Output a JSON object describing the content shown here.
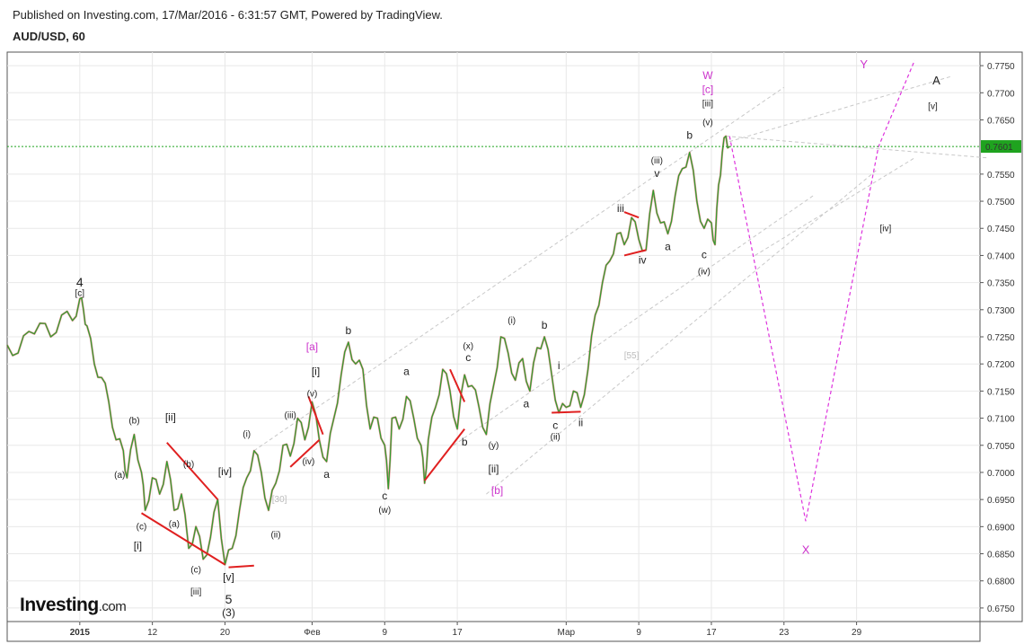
{
  "header": {
    "published": "Published on Investing.com, 17/Mar/2016 - 6:31:57 GMT, Powered by TradingView.",
    "symbol": "AUD/USD, 60"
  },
  "logo": {
    "brand": "Investing",
    "suffix": ".com"
  },
  "chart_data": {
    "type": "line",
    "ylim": [
      0.6725,
      0.7775
    ],
    "y_ticks": [
      0.675,
      0.68,
      0.685,
      0.69,
      0.695,
      0.7,
      0.705,
      0.71,
      0.715,
      0.72,
      0.725,
      0.73,
      0.735,
      0.74,
      0.745,
      0.75,
      0.755,
      0.765,
      0.77,
      0.775
    ],
    "y_tick_labels": [
      "0.6750",
      "0.6800",
      "0.6850",
      "0.6900",
      "0.6950",
      "0.7000",
      "0.7050",
      "0.7100",
      "0.7150",
      "0.7200",
      "0.7250",
      "0.7300",
      "0.7350",
      "0.7400",
      "0.7450",
      "0.7500",
      "0.7550",
      "0.7650",
      "0.7700",
      "0.7750"
    ],
    "x_ticks": [
      {
        "label": "2015",
        "bold": true,
        "t": 0
      },
      {
        "label": "12",
        "t": 10
      },
      {
        "label": "20",
        "t": 20
      },
      {
        "label": "Фев",
        "t": 32
      },
      {
        "label": "9",
        "t": 42
      },
      {
        "label": "17",
        "t": 52
      },
      {
        "label": "Мар",
        "t": 67
      },
      {
        "label": "9",
        "t": 77
      },
      {
        "label": "17",
        "t": 87
      },
      {
        "label": "23",
        "t": 97
      },
      {
        "label": "29",
        "t": 107
      }
    ],
    "x_range": [
      -10,
      124
    ],
    "current_price": {
      "value": 0.7601,
      "label": "0.7601"
    },
    "price_path": [
      [
        -10,
        0.7235
      ],
      [
        -8.5,
        0.722
      ],
      [
        -7,
        0.726
      ],
      [
        -5.5,
        0.7275
      ],
      [
        -4,
        0.725
      ],
      [
        -2.5,
        0.729
      ],
      [
        -1,
        0.728
      ],
      [
        0,
        0.732
      ],
      [
        0.5,
        0.73
      ],
      [
        1,
        0.727
      ],
      [
        2,
        0.72
      ],
      [
        3,
        0.7175
      ],
      [
        4,
        0.713
      ],
      [
        5,
        0.706
      ],
      [
        6,
        0.704
      ],
      [
        6.5,
        0.699
      ],
      [
        7.5,
        0.707
      ],
      [
        8.5,
        0.7
      ],
      [
        9,
        0.693
      ],
      [
        10,
        0.699
      ],
      [
        11,
        0.696
      ],
      [
        12,
        0.702
      ],
      [
        13,
        0.693
      ],
      [
        14,
        0.696
      ],
      [
        15,
        0.686
      ],
      [
        16,
        0.69
      ],
      [
        17,
        0.684
      ],
      [
        18,
        0.688
      ],
      [
        19,
        0.695
      ],
      [
        20,
        0.683
      ],
      [
        21,
        0.686
      ],
      [
        22,
        0.693
      ],
      [
        23,
        0.699
      ],
      [
        24,
        0.704
      ],
      [
        25,
        0.7
      ],
      [
        26,
        0.693
      ],
      [
        27,
        0.698
      ],
      [
        28,
        0.705
      ],
      [
        29,
        0.703
      ],
      [
        30,
        0.71
      ],
      [
        31,
        0.706
      ],
      [
        32,
        0.713
      ],
      [
        33,
        0.706
      ],
      [
        34,
        0.702
      ],
      [
        35,
        0.71
      ],
      [
        36,
        0.718
      ],
      [
        37,
        0.724
      ],
      [
        38,
        0.72
      ],
      [
        39,
        0.719
      ],
      [
        40,
        0.708
      ],
      [
        41,
        0.71
      ],
      [
        42,
        0.705
      ],
      [
        42.5,
        0.697
      ],
      [
        43,
        0.71
      ],
      [
        44,
        0.708
      ],
      [
        45,
        0.714
      ],
      [
        46,
        0.71
      ],
      [
        47,
        0.705
      ],
      [
        47.5,
        0.698
      ],
      [
        48,
        0.706
      ],
      [
        49,
        0.712
      ],
      [
        50,
        0.719
      ],
      [
        51,
        0.715
      ],
      [
        52,
        0.708
      ],
      [
        53,
        0.718
      ],
      [
        54,
        0.716
      ],
      [
        55,
        0.712
      ],
      [
        56,
        0.707
      ],
      [
        57,
        0.716
      ],
      [
        58,
        0.725
      ],
      [
        59,
        0.722
      ],
      [
        60,
        0.717
      ],
      [
        61,
        0.721
      ],
      [
        62,
        0.715
      ],
      [
        63,
        0.723
      ],
      [
        64,
        0.725
      ],
      [
        65,
        0.718
      ],
      [
        66,
        0.711
      ],
      [
        67,
        0.712
      ],
      [
        68,
        0.715
      ],
      [
        69,
        0.712
      ],
      [
        70,
        0.719
      ],
      [
        71,
        0.729
      ],
      [
        72,
        0.735
      ],
      [
        73,
        0.739
      ],
      [
        74,
        0.744
      ],
      [
        75,
        0.742
      ],
      [
        76,
        0.747
      ],
      [
        77,
        0.743
      ],
      [
        78,
        0.741
      ],
      [
        79,
        0.752
      ],
      [
        80,
        0.746
      ],
      [
        81,
        0.744
      ],
      [
        82,
        0.751
      ],
      [
        83,
        0.756
      ],
      [
        84,
        0.759
      ],
      [
        85,
        0.75
      ],
      [
        86,
        0.745
      ],
      [
        87,
        0.746
      ],
      [
        87.5,
        0.742
      ],
      [
        88,
        0.753
      ],
      [
        88.5,
        0.759
      ],
      [
        89,
        0.762
      ],
      [
        89.5,
        0.7601
      ]
    ],
    "price_labels": [
      {
        "text": "0.7750",
        "v": 0.775
      },
      {
        "text": "0.7700",
        "v": 0.77
      },
      {
        "text": "0.7650",
        "v": 0.765
      },
      {
        "text": "0.7550",
        "v": 0.755
      }
    ],
    "wave_labels": [
      {
        "text": "4",
        "t": 0,
        "v": 0.7343,
        "size": 14,
        "color": "#222"
      },
      {
        "text": "[c]",
        "t": 0,
        "v": 0.7325,
        "size": 10,
        "color": "#222"
      },
      {
        "text": "(b)",
        "t": 7.5,
        "v": 0.709,
        "size": 10,
        "color": "#222"
      },
      {
        "text": "(a)",
        "t": 5.5,
        "v": 0.699,
        "size": 10,
        "color": "#222"
      },
      {
        "text": "(c)",
        "t": 8.5,
        "v": 0.6895,
        "size": 10,
        "color": "#222"
      },
      {
        "text": "[i]",
        "t": 8,
        "v": 0.6858,
        "size": 12,
        "color": "#222"
      },
      {
        "text": "[ii]",
        "t": 12.5,
        "v": 0.7095,
        "size": 12,
        "color": "#222"
      },
      {
        "text": "(b)",
        "t": 15,
        "v": 0.701,
        "size": 10,
        "color": "#222"
      },
      {
        "text": "(a)",
        "t": 13,
        "v": 0.69,
        "size": 10,
        "color": "#222"
      },
      {
        "text": "(c)",
        "t": 16,
        "v": 0.6815,
        "size": 10,
        "color": "#222"
      },
      {
        "text": "[iii]",
        "t": 16,
        "v": 0.6775,
        "size": 10,
        "color": "#222"
      },
      {
        "text": "[iv]",
        "t": 20,
        "v": 0.6995,
        "size": 12,
        "color": "#222"
      },
      {
        "text": "(i)",
        "t": 23,
        "v": 0.7065,
        "size": 10,
        "color": "#222"
      },
      {
        "text": "[v]",
        "t": 20.5,
        "v": 0.68,
        "size": 12,
        "color": "#222"
      },
      {
        "text": "5",
        "t": 20.5,
        "v": 0.6758,
        "size": 14,
        "color": "#222"
      },
      {
        "text": "(3)",
        "t": 20.5,
        "v": 0.6735,
        "size": 12,
        "color": "#222"
      },
      {
        "text": "(ii)",
        "t": 27,
        "v": 0.688,
        "size": 10,
        "color": "#222"
      },
      {
        "text": "(iii)",
        "t": 29,
        "v": 0.71,
        "size": 10,
        "color": "#222"
      },
      {
        "text": "(iv)",
        "t": 31.5,
        "v": 0.7015,
        "size": 10,
        "color": "#222"
      },
      {
        "text": "(v)",
        "t": 32,
        "v": 0.714,
        "size": 10,
        "color": "#222"
      },
      {
        "text": "[i]",
        "t": 32.5,
        "v": 0.718,
        "size": 12,
        "color": "#222"
      },
      {
        "text": "[a]",
        "t": 32,
        "v": 0.7225,
        "size": 12,
        "color": "#cc33cc"
      },
      {
        "text": "a",
        "t": 34,
        "v": 0.699,
        "size": 12,
        "color": "#222"
      },
      {
        "text": "b",
        "t": 37,
        "v": 0.7255,
        "size": 12,
        "color": "#222"
      },
      {
        "text": "c",
        "t": 42,
        "v": 0.695,
        "size": 12,
        "color": "#222"
      },
      {
        "text": "(w)",
        "t": 42,
        "v": 0.6925,
        "size": 10,
        "color": "#222"
      },
      {
        "text": "a",
        "t": 45,
        "v": 0.718,
        "size": 12,
        "color": "#222"
      },
      {
        "text": "b",
        "t": 53,
        "v": 0.705,
        "size": 12,
        "color": "#222"
      },
      {
        "text": "(x)",
        "t": 53.5,
        "v": 0.7228,
        "size": 10,
        "color": "#222"
      },
      {
        "text": "c",
        "t": 53.5,
        "v": 0.7205,
        "size": 12,
        "color": "#222"
      },
      {
        "text": "(y)",
        "t": 57,
        "v": 0.7045,
        "size": 10,
        "color": "#222"
      },
      {
        "text": "[ii]",
        "t": 57,
        "v": 0.7,
        "size": 12,
        "color": "#222"
      },
      {
        "text": "[b]",
        "t": 57.5,
        "v": 0.696,
        "size": 12,
        "color": "#cc33cc"
      },
      {
        "text": "(i)",
        "t": 59.5,
        "v": 0.7275,
        "size": 10,
        "color": "#222"
      },
      {
        "text": "b",
        "t": 64,
        "v": 0.7265,
        "size": 12,
        "color": "#222"
      },
      {
        "text": "a",
        "t": 61.5,
        "v": 0.712,
        "size": 12,
        "color": "#222"
      },
      {
        "text": "i",
        "t": 66,
        "v": 0.719,
        "size": 12,
        "color": "#222"
      },
      {
        "text": "c",
        "t": 65.5,
        "v": 0.708,
        "size": 12,
        "color": "#222"
      },
      {
        "text": "(ii)",
        "t": 65.5,
        "v": 0.706,
        "size": 10,
        "color": "#222"
      },
      {
        "text": "ii",
        "t": 69,
        "v": 0.7085,
        "size": 12,
        "color": "#222"
      },
      {
        "text": "iii",
        "t": 74.5,
        "v": 0.748,
        "size": 12,
        "color": "#222"
      },
      {
        "text": "iv",
        "t": 77.5,
        "v": 0.7385,
        "size": 12,
        "color": "#222"
      },
      {
        "text": "(iii)",
        "t": 79.5,
        "v": 0.757,
        "size": 10,
        "color": "#222"
      },
      {
        "text": "v",
        "t": 79.5,
        "v": 0.7545,
        "size": 12,
        "color": "#222"
      },
      {
        "text": "a",
        "t": 81,
        "v": 0.741,
        "size": 12,
        "color": "#222"
      },
      {
        "text": "b",
        "t": 84,
        "v": 0.7615,
        "size": 12,
        "color": "#222"
      },
      {
        "text": "c",
        "t": 86,
        "v": 0.7395,
        "size": 12,
        "color": "#222"
      },
      {
        "text": "(iv)",
        "t": 86,
        "v": 0.7365,
        "size": 10,
        "color": "#222"
      },
      {
        "text": "(v)",
        "t": 86.5,
        "v": 0.764,
        "size": 10,
        "color": "#222"
      },
      {
        "text": "[iii]",
        "t": 86.5,
        "v": 0.7675,
        "size": 10,
        "color": "#222"
      },
      {
        "text": "[c]",
        "t": 86.5,
        "v": 0.77,
        "size": 12,
        "color": "#cc33cc"
      },
      {
        "text": "W",
        "t": 86.5,
        "v": 0.7725,
        "size": 12,
        "color": "#cc33cc"
      },
      {
        "text": "Y",
        "t": 108,
        "v": 0.7745,
        "size": 13,
        "color": "#cc33cc"
      },
      {
        "text": "A",
        "t": 118,
        "v": 0.7715,
        "size": 13,
        "color": "#222"
      },
      {
        "text": "[v]",
        "t": 117.5,
        "v": 0.767,
        "size": 10,
        "color": "#222"
      },
      {
        "text": "[iv]",
        "t": 111,
        "v": 0.7445,
        "size": 10,
        "color": "#222"
      },
      {
        "text": "X",
        "t": 100,
        "v": 0.685,
        "size": 13,
        "color": "#cc33cc"
      },
      {
        "text": "[30]",
        "t": 27.5,
        "v": 0.6945,
        "size": 10,
        "color": "#bbbbbb"
      },
      {
        "text": "[55]",
        "t": 76,
        "v": 0.721,
        "size": 10,
        "color": "#bbbbbb"
      }
    ],
    "red_lines": [
      [
        [
          8.5,
          0.6925
        ],
        [
          20,
          0.683
        ]
      ],
      [
        [
          12,
          0.7055
        ],
        [
          19,
          0.695
        ]
      ],
      [
        [
          20.5,
          0.6825
        ],
        [
          24,
          0.6828
        ]
      ],
      [
        [
          29,
          0.701
        ],
        [
          33,
          0.706
        ]
      ],
      [
        [
          31.5,
          0.714
        ],
        [
          33.5,
          0.707
        ]
      ],
      [
        [
          47.5,
          0.6985
        ],
        [
          53,
          0.708
        ]
      ],
      [
        [
          51,
          0.719
        ],
        [
          53,
          0.713
        ]
      ],
      [
        [
          65,
          0.711
        ],
        [
          69,
          0.7112
        ]
      ],
      [
        [
          75,
          0.748
        ],
        [
          77,
          0.747
        ]
      ],
      [
        [
          75,
          0.74
        ],
        [
          78,
          0.741
        ]
      ]
    ],
    "gray_lines": [
      [
        [
          24,
          0.704
        ],
        [
          97,
          0.771
        ]
      ],
      [
        [
          56,
          0.696
        ],
        [
          110,
          0.756
        ]
      ],
      [
        [
          51.5,
          0.705
        ],
        [
          101,
          0.751
        ]
      ],
      [
        [
          93,
          0.74
        ],
        [
          115,
          0.758
        ]
      ],
      [
        [
          89,
          0.762
        ],
        [
          125,
          0.758
        ]
      ],
      [
        [
          89.5,
          0.761
        ],
        [
          120,
          0.773
        ]
      ]
    ],
    "pink_path": [
      [
        89.5,
        0.762
      ],
      [
        100,
        0.691
      ],
      [
        110,
        0.76
      ],
      [
        115,
        0.776
      ]
    ],
    "grid": true
  }
}
